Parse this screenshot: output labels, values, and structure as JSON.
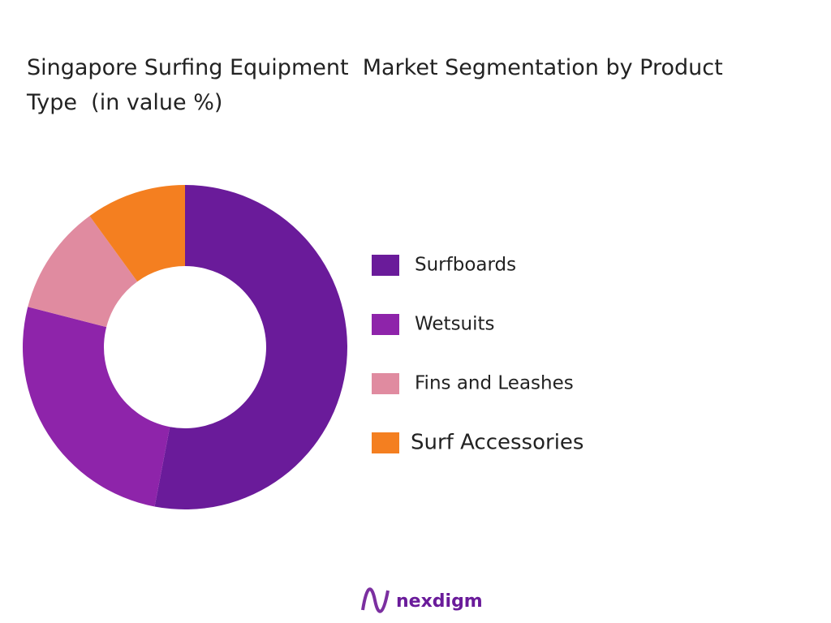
{
  "chart_data": {
    "type": "donut",
    "title": "Singapore Surfing Equipment  Market Segmentation by Product Type  (in value %)",
    "categories": [
      "Surfboards",
      "Wetsuits",
      "Fins and Leashes",
      "Surf Accessories"
    ],
    "values": [
      53,
      26,
      11,
      10
    ],
    "colors": [
      "#6a1b9a",
      "#8e24aa",
      "#e08ba0",
      "#f47f20"
    ],
    "legend": "right"
  },
  "brand": "nexdigm"
}
